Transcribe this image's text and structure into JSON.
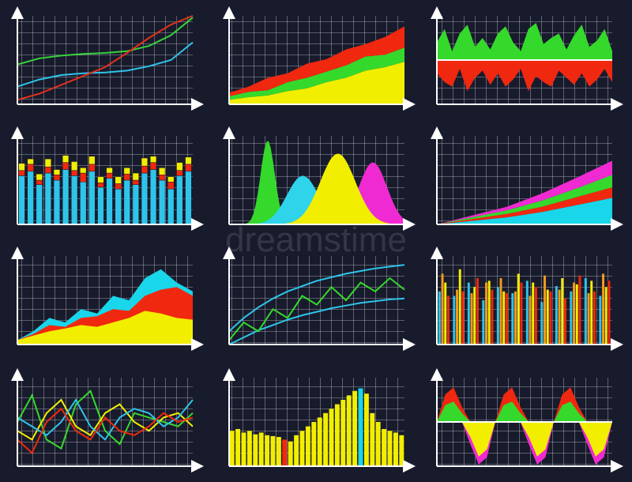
{
  "watermark": "dreamstime",
  "chart_data": [
    {
      "type": "line",
      "ylim": [
        0,
        100
      ],
      "series": [
        {
          "name": "green",
          "color": "#36d43a",
          "values": [
            45,
            52,
            55,
            57,
            58,
            60,
            66,
            78,
            98
          ]
        },
        {
          "name": "cyan",
          "color": "#2fc4ea",
          "values": [
            20,
            28,
            33,
            35,
            36,
            38,
            43,
            50,
            70
          ]
        },
        {
          "name": "red",
          "color": "#e2311c",
          "values": [
            5,
            12,
            22,
            32,
            42,
            58,
            75,
            90,
            100
          ]
        }
      ]
    },
    {
      "type": "stacked-area",
      "ylim": [
        0,
        100
      ],
      "series": [
        {
          "name": "yellow",
          "color": "#f2ee00",
          "values": [
            5,
            8,
            10,
            15,
            18,
            25,
            30,
            38,
            42,
            48
          ]
        },
        {
          "name": "green",
          "color": "#35d92c",
          "values": [
            4,
            6,
            6,
            10,
            12,
            12,
            14,
            16,
            14,
            16
          ]
        },
        {
          "name": "red",
          "color": "#f0280f",
          "values": [
            4,
            6,
            14,
            10,
            16,
            14,
            18,
            14,
            20,
            24
          ]
        }
      ]
    },
    {
      "type": "diverging-area",
      "ylim": [
        -50,
        50
      ],
      "series": [
        {
          "name": "green",
          "color": "#35d92c",
          "values": [
            20,
            35,
            10,
            30,
            40,
            15,
            25,
            12,
            30,
            38,
            20,
            10,
            35,
            42,
            18,
            25,
            30,
            12,
            28,
            40,
            15,
            22,
            35,
            10
          ]
        },
        {
          "name": "red",
          "color": "#f0280f",
          "values": [
            -15,
            -25,
            -30,
            -10,
            -35,
            -20,
            -12,
            -28,
            -15,
            -30,
            -22,
            -10,
            -35,
            -18,
            -25,
            -30,
            -12,
            -20,
            -28,
            -15,
            -30,
            -22,
            -10,
            -25
          ]
        }
      ]
    },
    {
      "type": "stacked-bar",
      "ylim": [
        0,
        100
      ],
      "series": [
        {
          "name": "cyan",
          "color": "#2fc4ea",
          "values": [
            55,
            60,
            45,
            58,
            50,
            62,
            55,
            48,
            60,
            42,
            52,
            40,
            50,
            45,
            58,
            62,
            50,
            40,
            55,
            60
          ]
        },
        {
          "name": "red",
          "color": "#f0280f",
          "values": [
            6,
            8,
            5,
            7,
            6,
            8,
            6,
            10,
            8,
            5,
            6,
            6,
            7,
            5,
            8,
            8,
            6,
            8,
            6,
            8
          ]
        },
        {
          "name": "yellow",
          "color": "#f2ee00",
          "values": [
            8,
            6,
            7,
            9,
            6,
            8,
            10,
            6,
            9,
            7,
            6,
            8,
            7,
            8,
            9,
            7,
            8,
            6,
            9,
            8
          ]
        }
      ]
    },
    {
      "type": "peaks",
      "xlim": [
        0,
        100
      ],
      "ylim": [
        0,
        100
      ],
      "series": [
        {
          "name": "green",
          "color": "#35d92c",
          "center": 22,
          "width": 4,
          "height": 95
        },
        {
          "name": "magenta",
          "color": "#f02ad2",
          "center": 82,
          "width": 8,
          "height": 70
        },
        {
          "name": "cyan",
          "color": "#2fd4ea",
          "center": 42,
          "width": 9,
          "height": 55
        },
        {
          "name": "yellow",
          "color": "#f2ee00",
          "center": 62,
          "width": 10,
          "height": 80
        }
      ]
    },
    {
      "type": "stacked-area",
      "ylim": [
        0,
        100
      ],
      "series": [
        {
          "name": "cyan",
          "color": "#19d6ea",
          "values": [
            0,
            4,
            8,
            14,
            22,
            30
          ]
        },
        {
          "name": "red",
          "color": "#f0280f",
          "values": [
            0,
            2,
            4,
            6,
            9,
            12
          ]
        },
        {
          "name": "green",
          "color": "#35d92c",
          "values": [
            0,
            2,
            4,
            7,
            10,
            14
          ]
        },
        {
          "name": "magenta",
          "color": "#f02ad2",
          "values": [
            0,
            2,
            4,
            8,
            12,
            16
          ]
        }
      ]
    },
    {
      "type": "area",
      "ylim": [
        0,
        100
      ],
      "series": [
        {
          "name": "cyan",
          "color": "#19d6ea",
          "values": [
            5,
            15,
            30,
            25,
            40,
            35,
            55,
            50,
            75,
            85,
            70,
            60
          ]
        },
        {
          "name": "red",
          "color": "#f0280f",
          "values": [
            5,
            12,
            22,
            20,
            30,
            32,
            40,
            38,
            55,
            62,
            65,
            55
          ]
        },
        {
          "name": "yellow",
          "color": "#f2ee00",
          "values": [
            5,
            10,
            15,
            18,
            22,
            20,
            25,
            30,
            38,
            35,
            30,
            28
          ]
        }
      ]
    },
    {
      "type": "line",
      "ylim": [
        0,
        100
      ],
      "series": [
        {
          "name": "upper",
          "color": "#2fc4ea",
          "values": [
            15,
            30,
            42,
            52,
            60,
            66,
            72,
            76,
            80,
            83,
            86,
            88,
            90
          ]
        },
        {
          "name": "lower",
          "color": "#2fc4ea",
          "values": [
            0,
            8,
            16,
            22,
            28,
            33,
            37,
            41,
            44,
            47,
            49,
            51,
            52
          ]
        },
        {
          "name": "green",
          "color": "#35d92c",
          "values": [
            5,
            25,
            15,
            40,
            30,
            55,
            45,
            65,
            50,
            70,
            60,
            75,
            62
          ]
        }
      ]
    },
    {
      "type": "grouped-bar",
      "ylim": [
        0,
        100
      ],
      "series": [
        {
          "name": "cyan",
          "color": "#2fc4ea",
          "values": [
            60,
            55,
            70,
            50,
            65,
            58,
            72,
            48,
            66,
            60,
            75,
            55
          ]
        },
        {
          "name": "orange",
          "color": "#f49a1a",
          "values": [
            80,
            62,
            58,
            70,
            75,
            60,
            55,
            78,
            62,
            70,
            58,
            80
          ]
        },
        {
          "name": "yellow",
          "color": "#f2ee00",
          "values": [
            70,
            85,
            65,
            72,
            60,
            80,
            70,
            62,
            75,
            68,
            72,
            65
          ]
        },
        {
          "name": "red",
          "color": "#f0280f",
          "values": [
            55,
            60,
            75,
            62,
            58,
            70,
            65,
            60,
            52,
            78,
            60,
            72
          ]
        }
      ]
    },
    {
      "type": "line",
      "ylim": [
        0,
        100
      ],
      "series": [
        {
          "name": "green",
          "color": "#35d92c",
          "values": [
            50,
            80,
            30,
            20,
            70,
            85,
            40,
            25,
            60,
            55,
            50,
            45,
            60
          ]
        },
        {
          "name": "yellow",
          "color": "#f2ee00",
          "values": [
            40,
            30,
            60,
            75,
            45,
            35,
            60,
            70,
            50,
            40,
            55,
            60,
            45
          ]
        },
        {
          "name": "cyan",
          "color": "#2fc4ea",
          "values": [
            55,
            45,
            35,
            50,
            75,
            45,
            30,
            55,
            65,
            60,
            45,
            55,
            75
          ]
        },
        {
          "name": "red",
          "color": "#f0280f",
          "values": [
            30,
            15,
            50,
            65,
            40,
            30,
            55,
            40,
            35,
            45,
            60,
            50,
            55
          ]
        }
      ]
    },
    {
      "type": "bar",
      "ylim": [
        0,
        100
      ],
      "values": [
        40,
        42,
        38,
        40,
        36,
        38,
        35,
        34,
        33,
        30,
        28,
        35,
        40,
        45,
        50,
        55,
        60,
        65,
        70,
        75,
        80,
        85,
        88,
        82,
        60,
        50,
        42,
        40,
        38,
        35
      ],
      "colors": [
        "#f2ee00",
        "#f2ee00",
        "#f2ee00",
        "#f2ee00",
        "#f2ee00",
        "#f2ee00",
        "#f2ee00",
        "#f2ee00",
        "#f2ee00",
        "#f0280f",
        "#f2ee00",
        "#f2ee00",
        "#f2ee00",
        "#f2ee00",
        "#f2ee00",
        "#f2ee00",
        "#f2ee00",
        "#f2ee00",
        "#f2ee00",
        "#f2ee00",
        "#f2ee00",
        "#f2ee00",
        "#19d6ea",
        "#f2ee00",
        "#f2ee00",
        "#f2ee00",
        "#f2ee00",
        "#f2ee00",
        "#f2ee00",
        "#f2ee00"
      ]
    },
    {
      "type": "diverging-area",
      "ylim": [
        -50,
        50
      ],
      "series": [
        {
          "name": "red",
          "color": "#f0280f",
          "values": [
            0,
            31,
            39,
            17,
            0,
            0,
            0,
            0,
            31,
            39,
            17,
            0,
            0,
            0,
            0,
            31,
            39,
            17,
            0,
            0,
            0,
            0
          ]
        },
        {
          "name": "green",
          "color": "#35d92c",
          "values": [
            0,
            19,
            23,
            10,
            0,
            0,
            0,
            0,
            19,
            23,
            10,
            0,
            0,
            0,
            0,
            19,
            23,
            10,
            0,
            0,
            0,
            0
          ]
        },
        {
          "name": "magenta",
          "color": "#f02ad2",
          "values": [
            0,
            0,
            0,
            0,
            -25,
            -48,
            -40,
            0,
            0,
            0,
            0,
            -25,
            -48,
            -40,
            0,
            0,
            0,
            0,
            -25,
            -48,
            -40,
            0
          ]
        },
        {
          "name": "yellow",
          "color": "#f2ee00",
          "values": [
            0,
            0,
            0,
            0,
            -17,
            -39,
            -31,
            0,
            0,
            0,
            0,
            -17,
            -39,
            -31,
            0,
            0,
            0,
            0,
            -17,
            -39,
            -31,
            0
          ]
        }
      ]
    }
  ]
}
